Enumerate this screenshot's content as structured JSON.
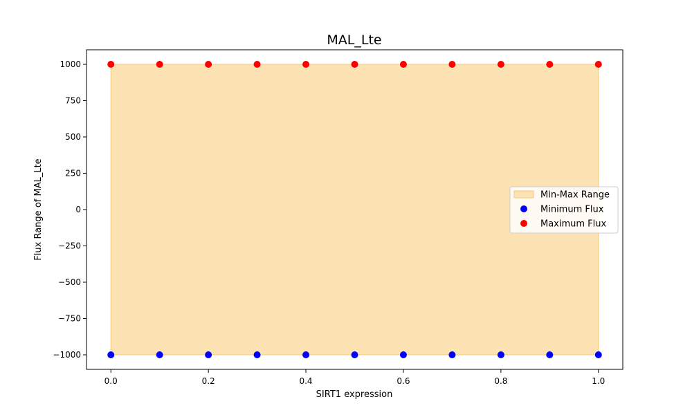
{
  "chart_data": {
    "type": "scatter",
    "title": "MAL_Lte",
    "xlabel": "SIRT1 expression",
    "ylabel": "Flux Range of MAL_Lte",
    "xlim": [
      -0.05,
      1.05
    ],
    "ylim": [
      -1100,
      1100
    ],
    "x": [
      0.0,
      0.1,
      0.2,
      0.3,
      0.4,
      0.5,
      0.6,
      0.7,
      0.8,
      0.9,
      1.0
    ],
    "x_ticks": [
      0.0,
      0.2,
      0.4,
      0.6,
      0.8,
      1.0
    ],
    "x_tick_labels": [
      "0.0",
      "0.2",
      "0.4",
      "0.6",
      "0.8",
      "1.0"
    ],
    "y_ticks": [
      1000,
      750,
      500,
      250,
      0,
      -250,
      -500,
      -750,
      -1000
    ],
    "y_tick_labels": [
      "1000",
      "750",
      "500",
      "250",
      "0",
      "−250",
      "−500",
      "−750",
      "−1000"
    ],
    "grid": false,
    "legend_position": "center-right",
    "range_band": {
      "name": "Min-Max Range",
      "color": "#fde2b3",
      "edge_color": "#f5c97a",
      "lower": [
        -1000,
        -1000,
        -1000,
        -1000,
        -1000,
        -1000,
        -1000,
        -1000,
        -1000,
        -1000,
        -1000
      ],
      "upper": [
        1000,
        1000,
        1000,
        1000,
        1000,
        1000,
        1000,
        1000,
        1000,
        1000,
        1000
      ]
    },
    "series": [
      {
        "name": "Minimum Flux",
        "color": "#0000ff",
        "values": [
          -1000,
          -1000,
          -1000,
          -1000,
          -1000,
          -1000,
          -1000,
          -1000,
          -1000,
          -1000,
          -1000
        ]
      },
      {
        "name": "Maximum Flux",
        "color": "#ff0000",
        "values": [
          1000,
          1000,
          1000,
          1000,
          1000,
          1000,
          1000,
          1000,
          1000,
          1000,
          1000
        ]
      }
    ]
  }
}
